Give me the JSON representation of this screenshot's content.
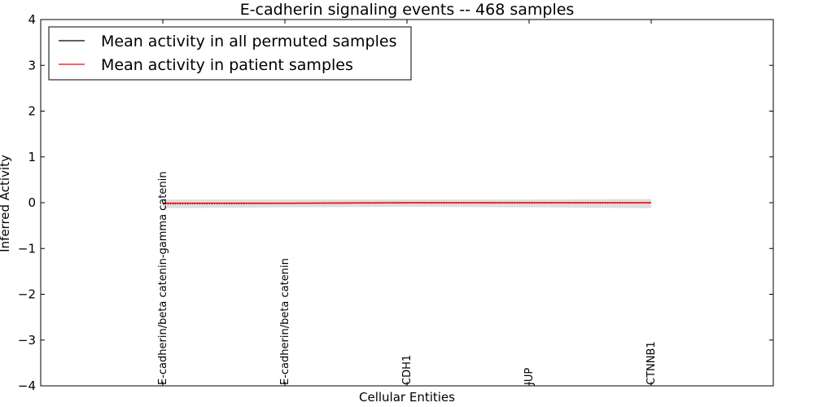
{
  "chart_data": {
    "type": "line",
    "title": "E-cadherin signaling events -- 468 samples",
    "xlabel": "Cellular Entities",
    "ylabel": "Inferred Activity",
    "ylim": [
      -4,
      4
    ],
    "yticks": [
      4,
      3,
      2,
      1,
      0,
      -1,
      -2,
      -3,
      -4
    ],
    "ytick_labels": [
      "4",
      "3",
      "2",
      "1",
      "0",
      "−1",
      "−2",
      "−3",
      "−4"
    ],
    "xlim": [
      -1,
      5
    ],
    "categories": [
      "E-cadherin/beta catenin-gamma catenin",
      "E-cadherin/beta catenin",
      "CDH1",
      "JUP",
      "CTNNB1"
    ],
    "series": [
      {
        "name": "Mean activity in all permuted samples",
        "color": "#000000",
        "values": [
          -0.03,
          -0.02,
          -0.01,
          -0.01,
          -0.01
        ],
        "style": "dotted"
      },
      {
        "name": "Mean activity in patient samples",
        "color": "#ff0000",
        "values": [
          -0.01,
          -0.01,
          0.0,
          0.0,
          0.0
        ],
        "style": "solid"
      }
    ],
    "band": {
      "color": "#c8c8c8",
      "upper": [
        0.07,
        0.07,
        0.07,
        0.07,
        0.08
      ],
      "lower": [
        -0.12,
        -0.1,
        -0.09,
        -0.1,
        -0.12
      ]
    },
    "legend_position": "top-left",
    "grid": false
  }
}
